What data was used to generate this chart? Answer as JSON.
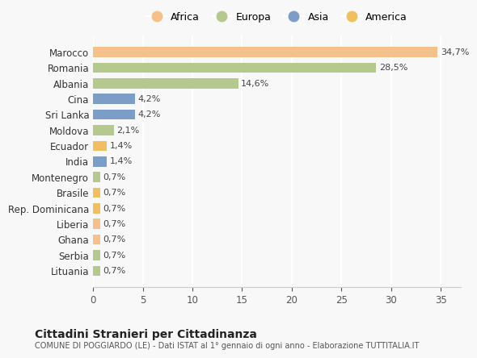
{
  "countries": [
    "Marocco",
    "Romania",
    "Albania",
    "Cina",
    "Sri Lanka",
    "Moldova",
    "Ecuador",
    "India",
    "Montenegro",
    "Brasile",
    "Rep. Dominicana",
    "Liberia",
    "Ghana",
    "Serbia",
    "Lituania"
  ],
  "values": [
    34.7,
    28.5,
    14.6,
    4.2,
    4.2,
    2.1,
    1.4,
    1.4,
    0.7,
    0.7,
    0.7,
    0.7,
    0.7,
    0.7,
    0.7
  ],
  "labels": [
    "34,7%",
    "28,5%",
    "14,6%",
    "4,2%",
    "4,2%",
    "2,1%",
    "1,4%",
    "1,4%",
    "0,7%",
    "0,7%",
    "0,7%",
    "0,7%",
    "0,7%",
    "0,7%",
    "0,7%"
  ],
  "continents": [
    "Africa",
    "Europa",
    "Europa",
    "Asia",
    "Asia",
    "Europa",
    "America",
    "Asia",
    "Europa",
    "America",
    "America",
    "Africa",
    "Africa",
    "Europa",
    "Europa"
  ],
  "continent_colors": {
    "Africa": "#F5C18A",
    "Europa": "#B5C98E",
    "Asia": "#7B9DC7",
    "America": "#F0C060"
  },
  "legend_order": [
    "Africa",
    "Europa",
    "Asia",
    "America"
  ],
  "xlim": [
    0,
    37
  ],
  "xticks": [
    0,
    5,
    10,
    15,
    20,
    25,
    30,
    35
  ],
  "title1": "Cittadini Stranieri per Cittadinanza",
  "title2": "COMUNE DI POGGIARDO (LE) - Dati ISTAT al 1° gennaio di ogni anno - Elaborazione TUTTITALIA.IT",
  "background_color": "#F8F8F8",
  "grid_color": "#FFFFFF",
  "bar_height": 0.65
}
